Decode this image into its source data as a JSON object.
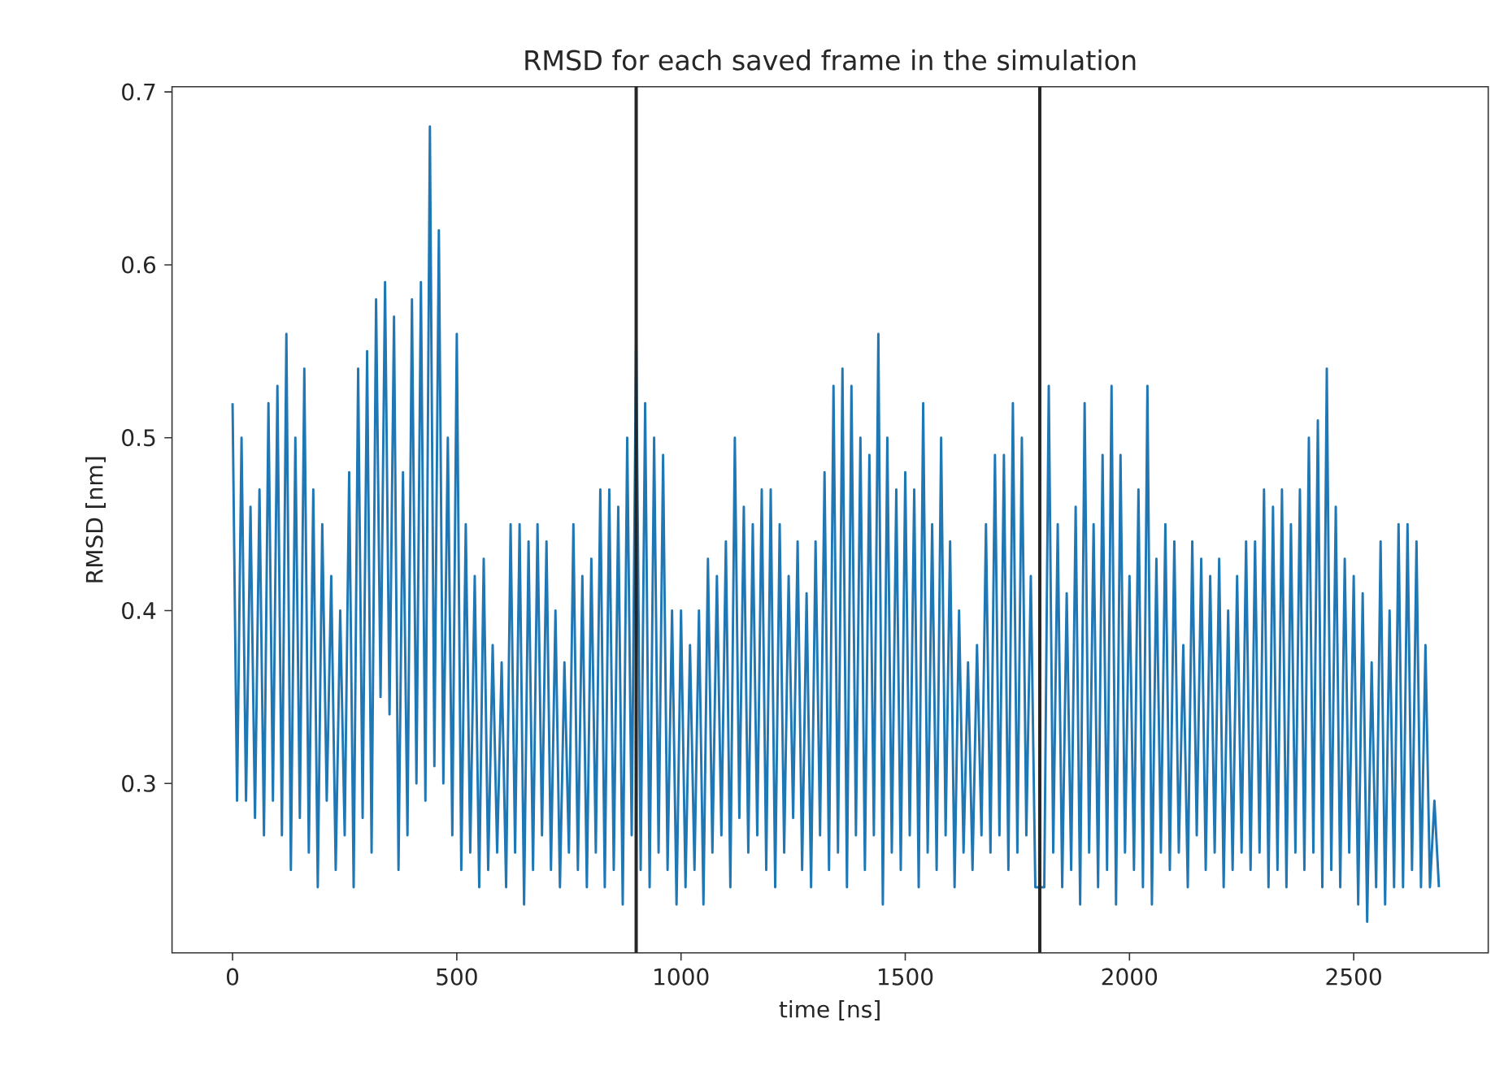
{
  "chart_data": {
    "type": "line",
    "title": "RMSD for each saved frame in the simulation",
    "xlabel": "time [ns]",
    "ylabel": "RMSD [nm]",
    "xlim": [
      -135,
      2800
    ],
    "ylim": [
      0.202,
      0.703
    ],
    "xticks": [
      0,
      500,
      1000,
      1500,
      2000,
      2500
    ],
    "yticks": [
      0.3,
      0.4,
      0.5,
      0.6,
      0.7
    ],
    "line_style": "solid",
    "ref_lines": [
      {
        "axis": "x",
        "value": 900,
        "color": "#262626"
      },
      {
        "axis": "x",
        "value": 1800,
        "color": "#262626"
      }
    ],
    "x": [
      0,
      10,
      20,
      30,
      40,
      50,
      60,
      70,
      80,
      90,
      100,
      110,
      120,
      130,
      140,
      150,
      160,
      170,
      180,
      190,
      200,
      210,
      220,
      230,
      240,
      250,
      260,
      270,
      280,
      290,
      300,
      310,
      320,
      330,
      340,
      350,
      360,
      370,
      380,
      390,
      400,
      410,
      420,
      430,
      440,
      450,
      460,
      470,
      480,
      490,
      500,
      510,
      520,
      530,
      540,
      550,
      560,
      570,
      580,
      590,
      600,
      610,
      620,
      630,
      640,
      650,
      660,
      670,
      680,
      690,
      700,
      710,
      720,
      730,
      740,
      750,
      760,
      770,
      780,
      790,
      800,
      810,
      820,
      830,
      840,
      850,
      860,
      870,
      880,
      890,
      900,
      910,
      920,
      930,
      940,
      950,
      960,
      970,
      980,
      990,
      1000,
      1010,
      1020,
      1030,
      1040,
      1050,
      1060,
      1070,
      1080,
      1090,
      1100,
      1110,
      1120,
      1130,
      1140,
      1150,
      1160,
      1170,
      1180,
      1190,
      1200,
      1210,
      1220,
      1230,
      1240,
      1250,
      1260,
      1270,
      1280,
      1290,
      1300,
      1310,
      1320,
      1330,
      1340,
      1350,
      1360,
      1370,
      1380,
      1390,
      1400,
      1410,
      1420,
      1430,
      1440,
      1450,
      1460,
      1470,
      1480,
      1490,
      1500,
      1510,
      1520,
      1530,
      1540,
      1550,
      1560,
      1570,
      1580,
      1590,
      1600,
      1610,
      1620,
      1630,
      1640,
      1650,
      1660,
      1670,
      1680,
      1690,
      1700,
      1710,
      1720,
      1730,
      1740,
      1750,
      1760,
      1770,
      1780,
      1790,
      1800,
      1810,
      1820,
      1830,
      1840,
      1850,
      1860,
      1870,
      1880,
      1890,
      1900,
      1910,
      1920,
      1930,
      1940,
      1950,
      1960,
      1970,
      1980,
      1990,
      2000,
      2010,
      2020,
      2030,
      2040,
      2050,
      2060,
      2070,
      2080,
      2090,
      2100,
      2110,
      2120,
      2130,
      2140,
      2150,
      2160,
      2170,
      2180,
      2190,
      2200,
      2210,
      2220,
      2230,
      2240,
      2250,
      2260,
      2270,
      2280,
      2290,
      2300,
      2310,
      2320,
      2330,
      2340,
      2350,
      2360,
      2370,
      2380,
      2390,
      2400,
      2410,
      2420,
      2430,
      2440,
      2450,
      2460,
      2470,
      2480,
      2490,
      2500,
      2510,
      2520,
      2530,
      2540,
      2550,
      2560,
      2570,
      2580,
      2590,
      2600,
      2610,
      2620,
      2630,
      2640,
      2650,
      2660,
      2670,
      2680,
      2690
    ],
    "series": [
      {
        "color": "#1f77b4",
        "values": [
          0.52,
          0.29,
          0.5,
          0.29,
          0.46,
          0.28,
          0.47,
          0.27,
          0.52,
          0.29,
          0.53,
          0.27,
          0.56,
          0.25,
          0.5,
          0.28,
          0.54,
          0.26,
          0.47,
          0.24,
          0.45,
          0.29,
          0.42,
          0.25,
          0.4,
          0.27,
          0.48,
          0.24,
          0.54,
          0.28,
          0.55,
          0.26,
          0.58,
          0.35,
          0.59,
          0.34,
          0.57,
          0.25,
          0.48,
          0.27,
          0.58,
          0.3,
          0.59,
          0.29,
          0.68,
          0.31,
          0.62,
          0.3,
          0.5,
          0.27,
          0.56,
          0.25,
          0.45,
          0.26,
          0.42,
          0.24,
          0.43,
          0.25,
          0.38,
          0.26,
          0.37,
          0.24,
          0.45,
          0.26,
          0.45,
          0.23,
          0.44,
          0.25,
          0.45,
          0.27,
          0.44,
          0.25,
          0.4,
          0.24,
          0.37,
          0.26,
          0.45,
          0.25,
          0.42,
          0.24,
          0.43,
          0.26,
          0.47,
          0.24,
          0.47,
          0.25,
          0.46,
          0.23,
          0.5,
          0.27,
          0.56,
          0.25,
          0.52,
          0.24,
          0.5,
          0.26,
          0.49,
          0.25,
          0.4,
          0.23,
          0.4,
          0.24,
          0.38,
          0.25,
          0.4,
          0.23,
          0.43,
          0.26,
          0.42,
          0.27,
          0.44,
          0.24,
          0.5,
          0.28,
          0.46,
          0.26,
          0.45,
          0.27,
          0.47,
          0.25,
          0.47,
          0.24,
          0.45,
          0.26,
          0.42,
          0.28,
          0.44,
          0.25,
          0.41,
          0.24,
          0.44,
          0.27,
          0.48,
          0.25,
          0.53,
          0.26,
          0.54,
          0.24,
          0.53,
          0.27,
          0.5,
          0.25,
          0.49,
          0.27,
          0.56,
          0.23,
          0.5,
          0.26,
          0.47,
          0.25,
          0.48,
          0.27,
          0.47,
          0.24,
          0.52,
          0.26,
          0.45,
          0.25,
          0.5,
          0.27,
          0.44,
          0.24,
          0.4,
          0.26,
          0.37,
          0.25,
          0.38,
          0.27,
          0.45,
          0.26,
          0.49,
          0.27,
          0.49,
          0.25,
          0.52,
          0.26,
          0.5,
          0.27,
          0.42,
          0.24,
          null,
          0.24,
          0.53,
          0.26,
          0.45,
          0.24,
          0.41,
          0.25,
          0.46,
          0.23,
          0.52,
          0.26,
          0.45,
          0.24,
          0.49,
          0.25,
          0.53,
          0.23,
          0.49,
          0.26,
          0.42,
          0.25,
          0.47,
          0.24,
          0.53,
          0.23,
          0.43,
          0.26,
          0.45,
          0.25,
          0.44,
          0.26,
          0.38,
          0.24,
          0.44,
          0.27,
          0.43,
          0.25,
          0.42,
          0.26,
          0.43,
          0.24,
          0.4,
          0.25,
          0.42,
          0.26,
          0.44,
          0.25,
          0.44,
          0.26,
          0.47,
          0.24,
          0.46,
          0.25,
          0.47,
          0.24,
          0.45,
          0.26,
          0.47,
          0.25,
          0.5,
          0.26,
          0.51,
          0.24,
          0.54,
          0.25,
          0.46,
          0.24,
          0.43,
          0.26,
          0.42,
          0.23,
          0.41,
          0.22,
          0.37,
          0.24,
          0.44,
          0.23,
          0.4,
          0.24,
          0.45,
          0.24,
          0.45,
          0.25,
          0.44,
          0.24,
          0.38,
          0.24,
          0.29,
          0.24
        ]
      }
    ]
  }
}
